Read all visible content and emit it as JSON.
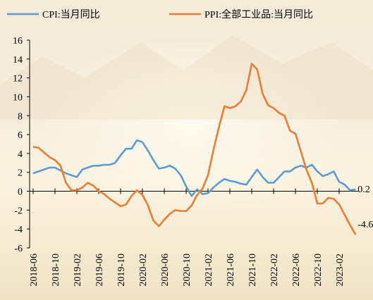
{
  "chart_data": {
    "type": "line",
    "categories": [
      "2018-06",
      null,
      null,
      null,
      "2018-10",
      null,
      null,
      null,
      "2019-02",
      null,
      null,
      null,
      "2019-06",
      null,
      null,
      null,
      "2019-10",
      null,
      null,
      null,
      "2020-02",
      null,
      null,
      null,
      "2020-06",
      null,
      null,
      null,
      "2020-10",
      null,
      null,
      null,
      "2021-02",
      null,
      null,
      null,
      "2021-06",
      null,
      null,
      null,
      "2021-10",
      null,
      null,
      null,
      "2022-02",
      null,
      null,
      null,
      "2022-06",
      null,
      null,
      null,
      "2022-10",
      null,
      null,
      null,
      "2023-02",
      null,
      null,
      null
    ],
    "series": [
      {
        "name": "CPI:当月同比",
        "color": "#5b9bd5",
        "values": [
          1.9,
          2.1,
          2.3,
          2.5,
          2.5,
          2.2,
          1.9,
          1.7,
          1.5,
          2.3,
          2.5,
          2.7,
          2.7,
          2.8,
          2.8,
          3.0,
          3.8,
          4.5,
          4.5,
          5.4,
          5.2,
          4.3,
          3.3,
          2.4,
          2.5,
          2.7,
          2.4,
          1.7,
          0.5,
          -0.5,
          0.2,
          -0.3,
          -0.2,
          0.4,
          0.9,
          1.3,
          1.1,
          1.0,
          0.8,
          0.7,
          1.5,
          2.3,
          1.5,
          0.9,
          0.9,
          1.5,
          2.1,
          2.1,
          2.5,
          2.7,
          2.5,
          2.8,
          2.1,
          1.6,
          1.8,
          2.1,
          1.0,
          0.7,
          0.1,
          0.2
        ]
      },
      {
        "name": "PPI:全部工业品:当月同比",
        "color": "#ed7d31",
        "values": [
          4.7,
          4.6,
          4.1,
          3.6,
          3.3,
          2.7,
          0.9,
          0.1,
          0.1,
          0.4,
          0.9,
          0.6,
          0.0,
          -0.3,
          -0.8,
          -1.2,
          -1.6,
          -1.4,
          -0.5,
          0.1,
          -0.4,
          -1.5,
          -3.1,
          -3.7,
          -3.0,
          -2.4,
          -2.0,
          -2.1,
          -2.1,
          -1.5,
          -0.4,
          0.3,
          1.7,
          4.4,
          6.8,
          9.0,
          8.8,
          9.0,
          9.5,
          10.7,
          13.5,
          12.9,
          10.3,
          9.1,
          8.8,
          8.3,
          8.0,
          6.4,
          6.1,
          4.2,
          2.3,
          0.9,
          -1.3,
          -1.3,
          -0.7,
          -0.8,
          -1.4,
          -2.5,
          -3.6,
          -4.6
        ]
      }
    ],
    "ylim": [
      -6,
      16
    ],
    "yticks": [
      -6,
      -4,
      -2,
      0,
      2,
      4,
      6,
      8,
      10,
      12,
      14,
      16
    ],
    "legend": "top"
  }
}
